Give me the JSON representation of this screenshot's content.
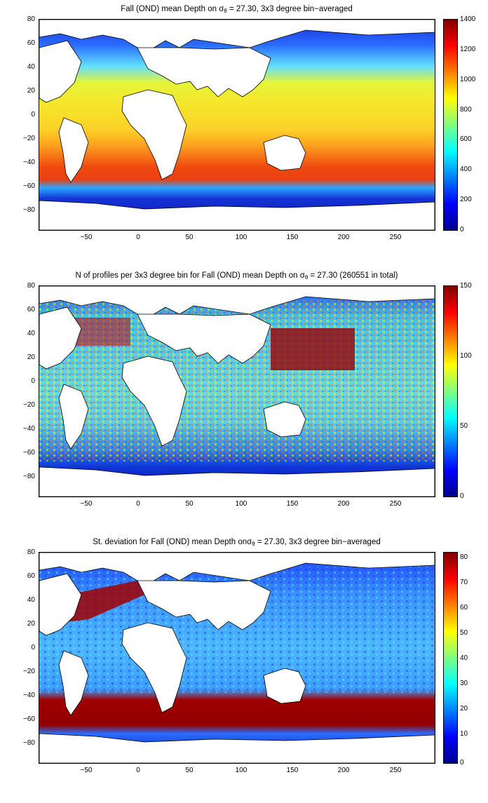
{
  "panels": [
    {
      "title_pre": "Fall (OND) mean Depth on ",
      "title_sym": "σ",
      "title_sub": "θ",
      "title_post": " = 27.30, 3x3 degree bin−averaged",
      "colorbar_ticks": [
        "1400",
        "1200",
        "1000",
        "800",
        "600",
        "400",
        "200",
        "0"
      ]
    },
    {
      "title_pre": "N of profiles per 3x3 degree bin for Fall (OND) mean Depth on ",
      "title_sym": "σ",
      "title_sub": "θ",
      "title_post": " = 27.30 (260551 in total)",
      "colorbar_ticks": [
        "150",
        "100",
        "50",
        "0"
      ]
    },
    {
      "title_pre": "St. deviation for Fall (OND) mean Depth on",
      "title_sym": "σ",
      "title_sub": "θ",
      "title_post": " = 27.30, 3x3 degree bin−averaged",
      "colorbar_ticks": [
        "80",
        "70",
        "60",
        "50",
        "40",
        "30",
        "20",
        "10",
        "0"
      ]
    }
  ],
  "y_ticks": [
    "80",
    "60",
    "40",
    "20",
    "0",
    "−20",
    "−40",
    "−60",
    "−80"
  ],
  "x_ticks": [
    "−50",
    "0",
    "50",
    "100",
    "150",
    "200",
    "250"
  ],
  "colormap": "jet",
  "land_color": "#ffffff"
}
